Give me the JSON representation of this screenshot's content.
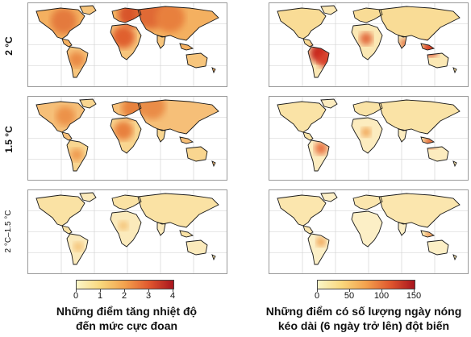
{
  "rows": [
    {
      "label": "2 °C"
    },
    {
      "label": "1.5 °C"
    },
    {
      "label": "2 °C–1.5 °C"
    }
  ],
  "left": {
    "colorbar": {
      "ticks": [
        "0",
        "1",
        "2",
        "3",
        "4"
      ],
      "colors": [
        "#fbf6c8",
        "#f9d77c",
        "#f3a14d",
        "#e0572e",
        "#a8141e"
      ]
    },
    "caption": {
      "line1": "Những điểm tăng nhiệt độ",
      "line2": "đến mức cực đoan"
    }
  },
  "right": {
    "colorbar": {
      "ticks": [
        "0",
        "50",
        "100",
        "150"
      ],
      "colors": [
        "#fbf6c8",
        "#f9d77c",
        "#f3a14d",
        "#e0572e",
        "#a8141e"
      ]
    },
    "caption": {
      "line1": "Những điểm có số lượng ngày nóng",
      "line2": "kéo dài (6 ngày trở lên) đột biến"
    }
  }
}
